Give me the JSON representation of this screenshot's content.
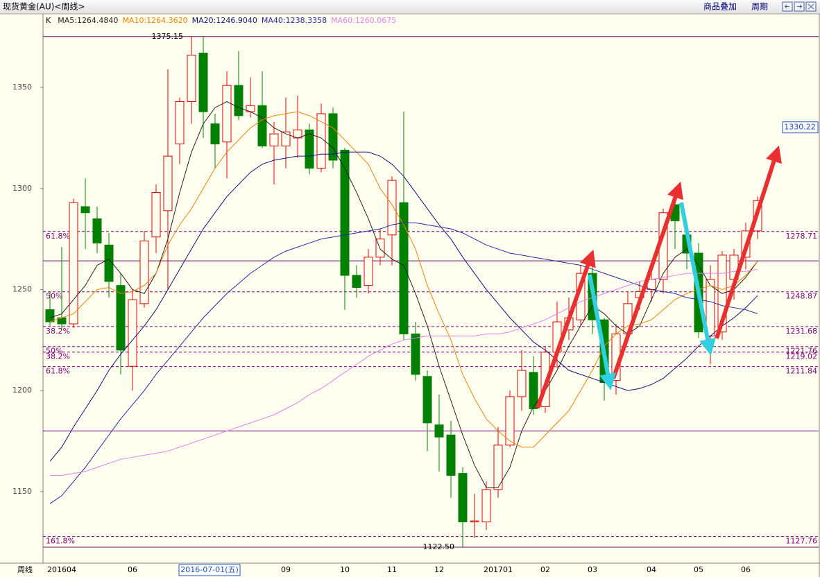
{
  "toolbar": {
    "title": "现货黄金(AU)<周线>",
    "buttons": [
      "商品叠加",
      "周期"
    ],
    "period_label": "周线"
  },
  "chart_data": {
    "type": "candlestick",
    "categories": [
      null,
      "201604",
      null,
      null,
      null,
      null,
      null,
      "06",
      null,
      null,
      null,
      null,
      null,
      null,
      null,
      null,
      null,
      null,
      null,
      null,
      "09",
      null,
      null,
      null,
      null,
      "10",
      null,
      null,
      null,
      "11",
      null,
      null,
      null,
      "12",
      null,
      null,
      null,
      null,
      "201701",
      null,
      null,
      null,
      "02",
      null,
      null,
      null,
      "03",
      null,
      null,
      null,
      null,
      "04",
      null,
      null,
      null,
      "05",
      null,
      null,
      null,
      "06",
      null
    ],
    "candles": {
      "name": "K",
      "up_color": "#e00000",
      "down_color": "#008000",
      "open": [
        1240,
        1236,
        1233,
        1291,
        1285,
        1272,
        1252,
        1212,
        1243,
        1276,
        1289,
        1322,
        1343,
        1367,
        1332,
        1323,
        1351,
        1338,
        1341,
        1321,
        1321,
        1325,
        1329,
        1310,
        1337,
        1319,
        1257,
        1252,
        1266,
        1277,
        1293,
        1228,
        1207,
        1183,
        1178,
        1159,
        1135,
        1135,
        1151,
        1173,
        1197,
        1209,
        1192,
        1219,
        1230,
        1235,
        1258,
        1235,
        1205,
        1228,
        1246,
        1250,
        1255,
        1292,
        1277,
        1268,
        1227,
        1229,
        1255,
        1266,
        1279
      ],
      "high": [
        1249,
        1271,
        1295,
        1305,
        1291,
        1278,
        1258,
        1250,
        1279,
        1302,
        1359,
        1345,
        1375.15,
        1375,
        1337,
        1358,
        1368,
        1355,
        1358,
        1333,
        1345,
        1346,
        1332,
        1342,
        1340,
        1320,
        1262,
        1270,
        1280,
        1306,
        1338,
        1234,
        1210,
        1198,
        1185,
        1162,
        1149,
        1155,
        1182,
        1200,
        1220,
        1217,
        1222,
        1244,
        1246,
        1262,
        1265,
        1236,
        1233,
        1249,
        1254,
        1258,
        1290,
        1296,
        1281,
        1273,
        1262,
        1269,
        1270,
        1283,
        1296
      ],
      "low": [
        1232,
        1230,
        1231,
        1270,
        1268,
        1246,
        1208,
        1200,
        1241,
        1268,
        1250,
        1312,
        1332,
        1325,
        1310,
        1305,
        1334,
        1335,
        1320,
        1302,
        1310,
        1315,
        1307,
        1308,
        1310,
        1240,
        1246,
        1248,
        1262,
        1262,
        1225,
        1205,
        1170,
        1160,
        1147,
        1122.5,
        1127,
        1131,
        1147,
        1172,
        1190,
        1188,
        1189,
        1211,
        1225,
        1232,
        1228,
        1195,
        1198,
        1225,
        1240,
        1244,
        1248,
        1270,
        1260,
        1226,
        1213,
        1225,
        1245,
        1260,
        1275
      ],
      "close": [
        1234,
        1233,
        1293,
        1288,
        1273,
        1254,
        1220,
        1245,
        1274,
        1298,
        1316,
        1343,
        1366,
        1338,
        1322,
        1351,
        1336,
        1341,
        1321,
        1327,
        1328,
        1329,
        1310,
        1337,
        1314,
        1257,
        1251,
        1266,
        1275,
        1304,
        1228,
        1208,
        1184,
        1177,
        1158,
        1135,
        1135.5,
        1151,
        1173,
        1197,
        1210,
        1191,
        1219,
        1234,
        1236,
        1258,
        1235,
        1204,
        1228,
        1243,
        1249,
        1255,
        1288,
        1284,
        1268,
        1229,
        1255,
        1267,
        1267,
        1279,
        1294
      ]
    },
    "series": [
      {
        "name": "MA5:1264.4840",
        "color": "#222222",
        "values": [
          1236,
          1238,
          1245,
          1252,
          1262,
          1265,
          1258,
          1250,
          1248,
          1258,
          1275,
          1298,
          1318,
          1332,
          1340,
          1343,
          1340,
          1338,
          1335,
          1330,
          1327,
          1325,
          1327,
          1325,
          1320,
          1310,
          1298,
          1285,
          1270,
          1265,
          1262,
          1248,
          1232,
          1212,
          1195,
          1178,
          1163,
          1152,
          1152,
          1162,
          1180,
          1192,
          1200,
          1210,
          1222,
          1232,
          1242,
          1238,
          1232,
          1228,
          1232,
          1245,
          1258,
          1266,
          1270,
          1262,
          1252,
          1248,
          1250,
          1256,
          1264
        ]
      },
      {
        "name": "MA10:1264.3620",
        "color": "#f08000",
        "values": [
          1234,
          1236,
          1238,
          1244,
          1250,
          1251,
          1248,
          1249,
          1252,
          1258,
          1272,
          1282,
          1290,
          1300,
          1310,
          1318,
          1324,
          1330,
          1334,
          1336,
          1337,
          1338,
          1336,
          1333,
          1330,
          1324,
          1318,
          1312,
          1300,
          1292,
          1282,
          1270,
          1252,
          1238,
          1225,
          1208,
          1196,
          1186,
          1180,
          1175,
          1172,
          1172,
          1178,
          1184,
          1190,
          1200,
          1210,
          1222,
          1228,
          1232,
          1233,
          1235,
          1240,
          1245,
          1248,
          1250,
          1252,
          1250,
          1252,
          1257,
          1264
        ]
      },
      {
        "name": "MA20:1246.9040",
        "color": "#101080",
        "values": [
          1165,
          1172,
          1182,
          1191,
          1200,
          1210,
          1218,
          1225,
          1232,
          1240,
          1250,
          1260,
          1270,
          1280,
          1288,
          1296,
          1302,
          1308,
          1312,
          1314,
          1315,
          1316,
          1316,
          1317,
          1317,
          1318,
          1318,
          1318,
          1316,
          1312,
          1306,
          1298,
          1290,
          1282,
          1275,
          1266,
          1258,
          1250,
          1243,
          1236,
          1230,
          1224,
          1220,
          1215,
          1210,
          1208,
          1206,
          1204,
          1202,
          1200,
          1201,
          1203,
          1206,
          1211,
          1216,
          1222,
          1227,
          1232,
          1236,
          1241,
          1247
        ]
      },
      {
        "name": "MA40:1238.3358",
        "color": "#2828a8",
        "values": [
          1144,
          1148,
          1155,
          1162,
          1170,
          1178,
          1186,
          1193,
          1200,
          1208,
          1215,
          1222,
          1229,
          1236,
          1242,
          1248,
          1253,
          1258,
          1262,
          1266,
          1269,
          1271,
          1273,
          1275,
          1276,
          1277,
          1278,
          1279,
          1280,
          1282,
          1283,
          1283,
          1282,
          1281,
          1280,
          1278,
          1275,
          1272,
          1270,
          1268,
          1267,
          1266,
          1265,
          1264,
          1263,
          1262,
          1260,
          1258,
          1256,
          1254,
          1252,
          1250,
          1249,
          1248,
          1246,
          1245,
          1244,
          1242,
          1241,
          1240,
          1238
        ]
      },
      {
        "name": "MA60:1260.0675",
        "color": "#e080f0",
        "values": [
          1158,
          1158,
          1159,
          1160,
          1162,
          1164,
          1166,
          1167,
          1168,
          1169,
          1170,
          1172,
          1174,
          1176,
          1178,
          1180,
          1182,
          1184,
          1186,
          1188,
          1191,
          1194,
          1198,
          1201,
          1205,
          1209,
          1213,
          1217,
          1220,
          1223,
          1225,
          1226,
          1227,
          1227,
          1227,
          1227,
          1227,
          1228,
          1228,
          1229,
          1231,
          1233,
          1235,
          1238,
          1241,
          1244,
          1246,
          1248,
          1250,
          1252,
          1254,
          1255,
          1256,
          1257,
          1258,
          1258,
          1258,
          1258,
          1259,
          1259,
          1260
        ]
      }
    ],
    "ylim": [
      1114.6,
      1386.4
    ],
    "yticks": [
      1150,
      1200,
      1250,
      1300,
      1350
    ],
    "grid": false,
    "marked_extremes": [
      1375.15,
      {
        "value": 1122.5,
        "label": "1122.50"
      }
    ],
    "hlines": [
      1264.2,
      1180
    ],
    "fib_levels": [
      {
        "value": 1278.71,
        "ratio": "61.8%"
      },
      {
        "value": 1248.87,
        "ratio": "50%"
      },
      {
        "value": 1231.68,
        "ratio": "38.2%"
      },
      {
        "value": 1221.76,
        "ratio": "50%"
      },
      {
        "value": 1219.02,
        "ratio": "38.2%"
      },
      {
        "value": 1211.84,
        "ratio": "61.8%"
      },
      {
        "value": 1127.76,
        "ratio": "161.8%"
      }
    ],
    "cursor": {
      "date": "2016-07-01(五)",
      "price": 1330.22
    }
  }
}
